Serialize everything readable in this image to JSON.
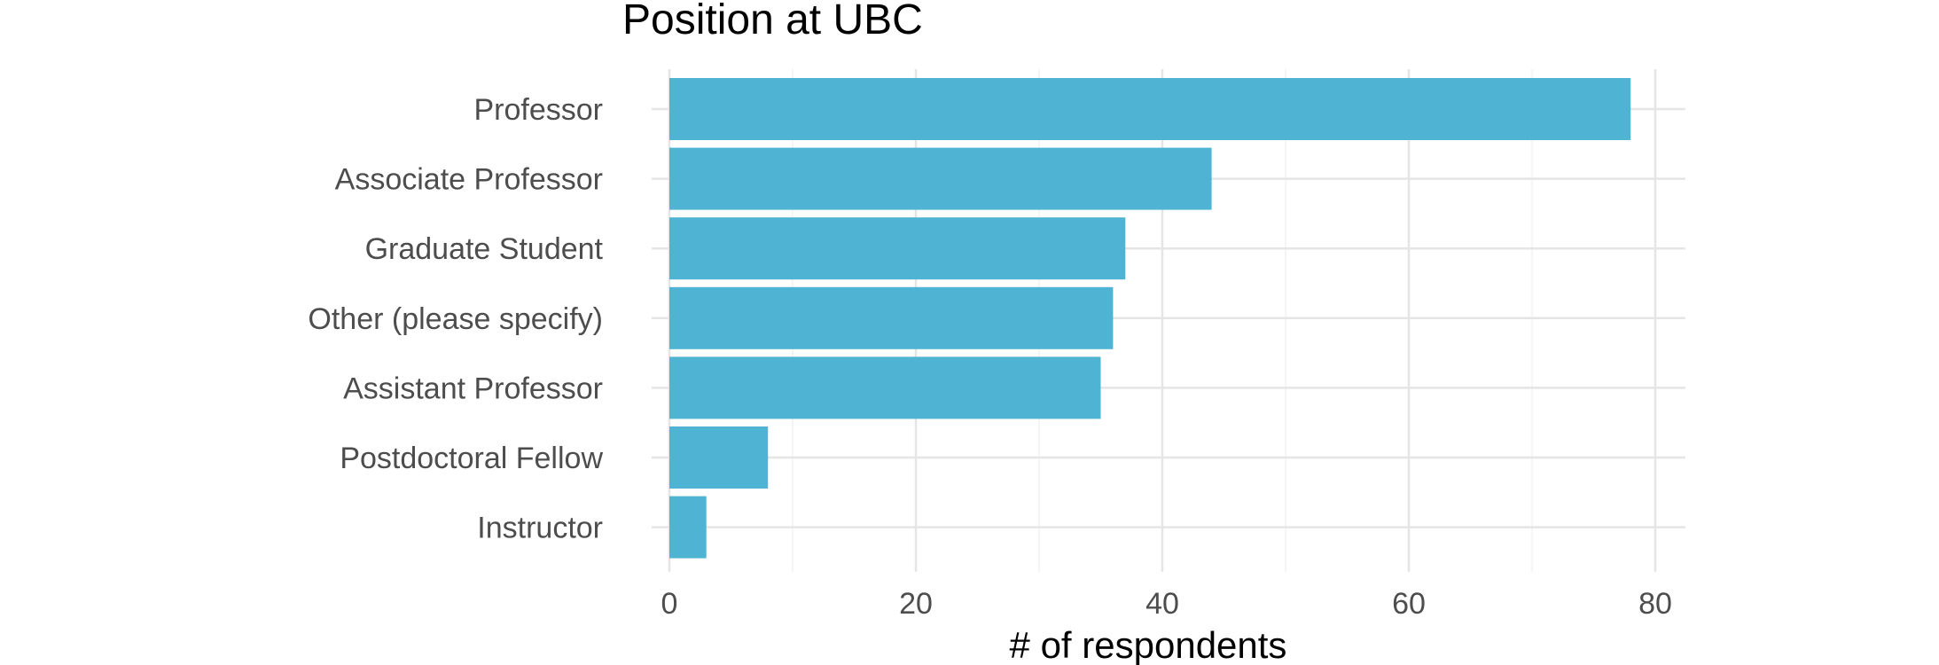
{
  "chart_data": {
    "type": "bar",
    "orientation": "horizontal",
    "title": "Position at UBC",
    "xlabel": "# of respondents",
    "ylabel": "",
    "categories": [
      "Professor",
      "Associate Professor",
      "Graduate Student",
      "Other (please specify)",
      "Assistant Professor",
      "Postdoctoral Fellow",
      "Instructor"
    ],
    "values": [
      78,
      44,
      37,
      36,
      35,
      8,
      3
    ],
    "xlim": [
      0,
      81
    ],
    "x_ticks": [
      0,
      20,
      40,
      60,
      80
    ],
    "x_tick_labels": [
      "0",
      "20",
      "40",
      "60",
      "80"
    ],
    "grid": true,
    "bar_color": "#4FB3D3"
  }
}
